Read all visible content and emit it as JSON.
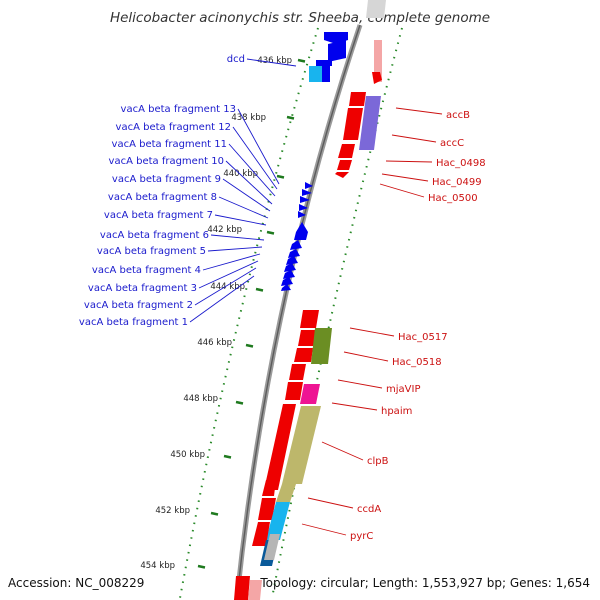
{
  "title": "Helicobacter acinonychis str. Sheeba, complete genome",
  "footer": {
    "accession": "Accession: NC_008229",
    "topology": "Topology: circular; Length: 1,553,927 bp; Genes: 1,654"
  },
  "ticks": [
    "436 kbp",
    "438 kbp",
    "440 kbp",
    "442 kbp",
    "444 kbp",
    "446 kbp",
    "448 kbp",
    "450 kbp",
    "452 kbp",
    "454 kbp"
  ],
  "left_labels": [
    "dcd",
    "vacA beta fragment 13",
    "vacA beta fragment 12",
    "vacA beta fragment 11",
    "vacA beta fragment 10",
    "vacA beta fragment 9",
    "vacA beta fragment 8",
    "vacA beta fragment 7",
    "vacA beta fragment 6",
    "vacA beta fragment 5",
    "vacA beta fragment 4",
    "vacA beta fragment 3",
    "vacA beta fragment 2",
    "vacA beta fragment 1"
  ],
  "right_labels": [
    "accB",
    "accC",
    "Hac_0498",
    "Hac_0499",
    "Hac_0500",
    "Hac_0517",
    "Hac_0518",
    "mjaVIP",
    "hpaim",
    "clpB",
    "ccdA",
    "pyrC"
  ],
  "colors": {
    "forward_gene": "#0000ee",
    "reverse_gene": "#ee0000",
    "cyan": "#18b4ee",
    "purple": "#7b68d8",
    "olive": "#6b8e23",
    "khaki": "#bdb76b",
    "magenta": "#ee1493",
    "tick_green": "#1f7a1f",
    "backbone": "#808080"
  }
}
